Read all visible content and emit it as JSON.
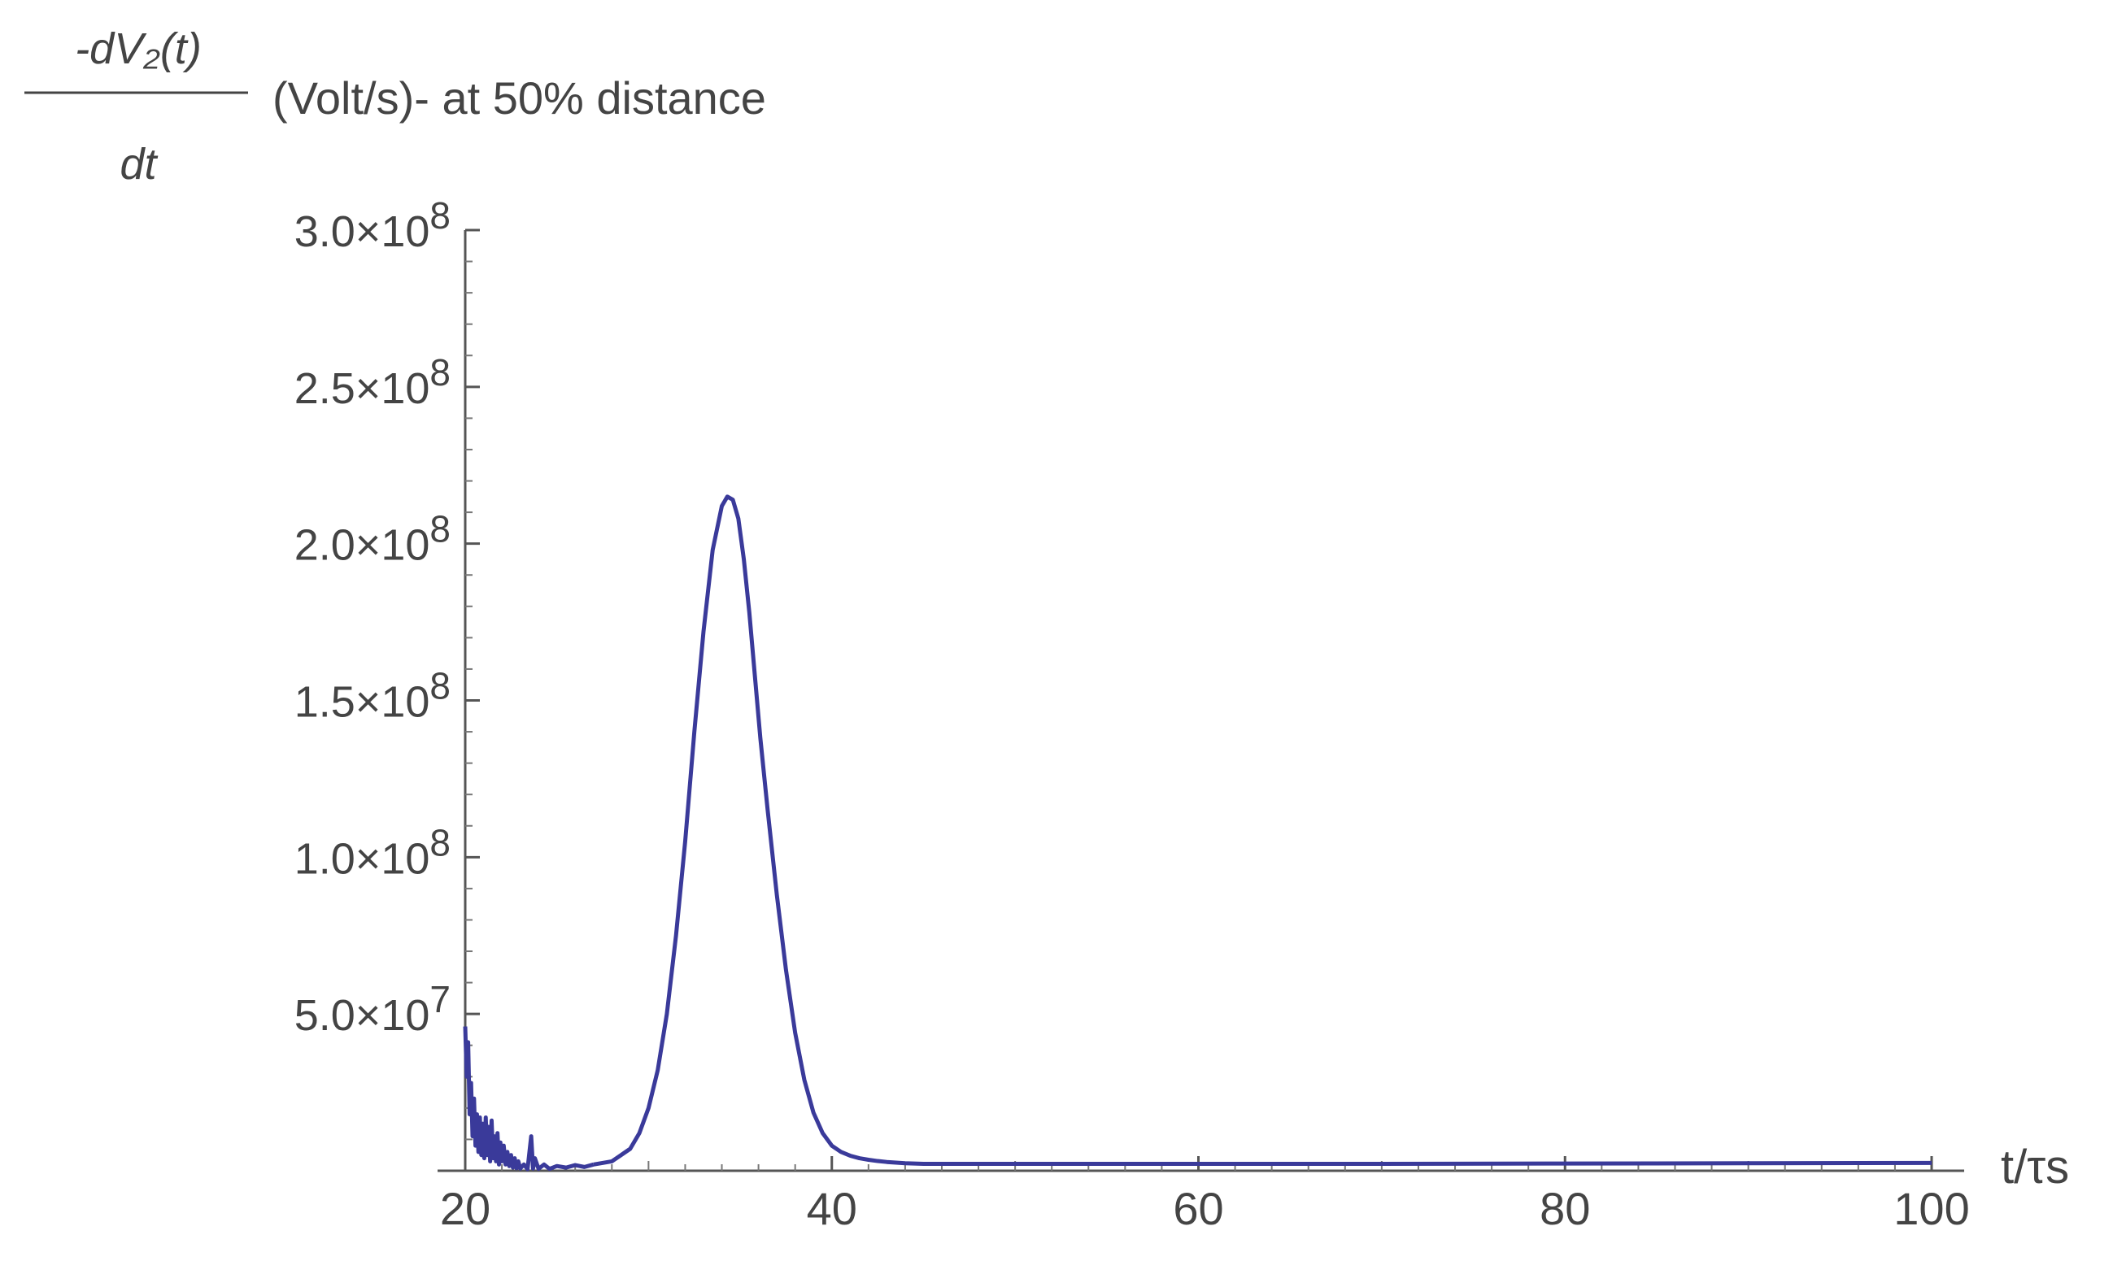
{
  "chart_data": {
    "type": "line",
    "ylabel": {
      "numerator": "-dV₂(t)",
      "denominator": "dt",
      "suffix": "(Volt/s)- at 50% distance"
    },
    "xlabel": "t/τs",
    "xlim": [
      20,
      100
    ],
    "ylim": [
      0,
      300000000
    ],
    "x_ticks": [
      {
        "value": 20,
        "label": "20"
      },
      {
        "value": 40,
        "label": "40"
      },
      {
        "value": 60,
        "label": "60"
      },
      {
        "value": 80,
        "label": "80"
      },
      {
        "value": 100,
        "label": "100"
      }
    ],
    "y_ticks": [
      {
        "value": 50000000,
        "mantissa": "5.0",
        "exponent": "7"
      },
      {
        "value": 100000000,
        "mantissa": "1.0",
        "exponent": "8"
      },
      {
        "value": 150000000,
        "mantissa": "1.5",
        "exponent": "8"
      },
      {
        "value": 200000000,
        "mantissa": "2.0",
        "exponent": "8"
      },
      {
        "value": 250000000,
        "mantissa": "2.5",
        "exponent": "8"
      },
      {
        "value": 300000000,
        "mantissa": "3.0",
        "exponent": "8"
      }
    ],
    "series": [
      {
        "color": "#3a3a9a",
        "x": [
          27.0,
          28.0,
          29.0,
          29.5,
          30.0,
          30.5,
          31.0,
          31.5,
          32.0,
          32.5,
          33.0,
          33.5,
          34.0,
          34.3,
          34.6,
          34.9,
          35.2,
          35.5,
          35.8,
          36.1,
          36.5,
          37.0,
          37.5,
          38.0,
          38.5,
          39.0,
          39.5,
          40.0,
          40.5,
          41.0,
          41.5,
          42.0,
          42.5,
          43.0,
          44.0,
          45.0,
          50.0,
          60.0,
          70.0,
          80.0,
          90.0,
          100.0
        ],
        "y": [
          2000000,
          3000000,
          7000000,
          12000000,
          20000000,
          32000000,
          50000000,
          75000000,
          105000000,
          140000000,
          172000000,
          198000000,
          212000000,
          215000000,
          214000000,
          208000000,
          195000000,
          178000000,
          158000000,
          138000000,
          115000000,
          88000000,
          64000000,
          44000000,
          29000000,
          18500000,
          12000000,
          8000000,
          6000000,
          4800000,
          4000000,
          3500000,
          3100000,
          2800000,
          2400000,
          2200000,
          2200000,
          2200000,
          2200000,
          2300000,
          2400000,
          2500000
        ]
      },
      {
        "color": "#3a3a9a",
        "x": [
          20.0,
          20.08,
          20.16,
          20.24,
          20.32,
          20.4,
          20.48,
          20.56,
          20.64,
          20.72,
          20.8,
          20.88,
          20.96,
          21.04,
          21.12,
          21.2,
          21.28,
          21.36,
          21.44,
          21.52,
          21.6,
          21.68,
          21.76,
          21.84,
          21.92,
          22.0,
          22.1,
          22.2,
          22.3,
          22.4,
          22.5,
          22.6,
          22.7,
          22.8,
          22.9,
          23.0,
          23.2,
          23.4,
          23.6,
          23.7,
          23.8,
          24.0,
          24.3,
          24.6,
          25.0,
          25.5,
          26.0,
          26.5,
          27.0
        ],
        "y": [
          46000000,
          30000000,
          41000000,
          18000000,
          28000000,
          11000000,
          23000000,
          8000000,
          18000000,
          6000000,
          17000000,
          5000000,
          15000000,
          4000000,
          17000000,
          5000000,
          14000000,
          3000000,
          16000000,
          4000000,
          11000000,
          3000000,
          12000000,
          2000000,
          9000000,
          3000000,
          8000000,
          2000000,
          6000000,
          1500000,
          5000000,
          1000000,
          4000000,
          800000,
          3000000,
          700000,
          2000000,
          500000,
          11000000,
          700000,
          4000000,
          600000,
          2000000,
          600000,
          1500000,
          1000000,
          1800000,
          1200000,
          2000000
        ]
      }
    ]
  }
}
